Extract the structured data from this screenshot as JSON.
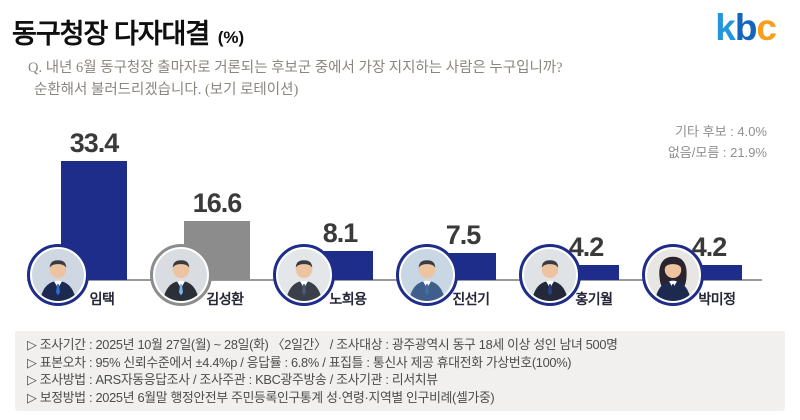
{
  "header": {
    "title": "동구청장 다자대결",
    "unit": "(%)",
    "question_line1": "Q. 내년 6월 동구청장 출마자로 거론되는 후보군 중에서 가장 지지하는 사람은 누구입니까?",
    "question_line2": "순환해서 불러드리겠습니다. (보기 로테이션)"
  },
  "logo": {
    "letters": [
      "k",
      "b",
      "c"
    ],
    "colors": [
      "#2496dc",
      "#1565be",
      "#f79f1a"
    ]
  },
  "side_stats": {
    "line1": "기타 후보 : 4.0%",
    "line2": "없음/모름 : 21.9%"
  },
  "chart_data": {
    "type": "bar",
    "title": "동구청장 다자대결 (%)",
    "categories": [
      "임택",
      "김성환",
      "노희용",
      "진선기",
      "홍기월",
      "박미정"
    ],
    "values": [
      33.4,
      16.6,
      8.1,
      7.5,
      4.2,
      4.2
    ],
    "bar_colors": [
      "#1f2d8a",
      "#8c8c8c",
      "#1f2d8a",
      "#1f2d8a",
      "#1f2d8a",
      "#1f2d8a"
    ],
    "other_candidates_pct": 4.0,
    "none_dontknow_pct": 21.9,
    "unit": "%",
    "ylim": [
      0,
      40
    ],
    "grid": false,
    "legend": "none"
  },
  "candidates": [
    {
      "ring": "#1f2d8a",
      "avatar": {
        "bg": "#cfd8e2",
        "suit": "#1d2a4f",
        "tie": "#2a6fd4",
        "female": false
      }
    },
    {
      "ring": "#8c8c8c",
      "avatar": {
        "bg": "#d9dde2",
        "suit": "#2a2f38",
        "tie": "#7fb6e8",
        "female": false
      }
    },
    {
      "ring": "#1f2d8a",
      "avatar": {
        "bg": "#e3e7ea",
        "suit": "#3a3f4a",
        "tie": "#4a5a78",
        "female": false
      }
    },
    {
      "ring": "#1f2d8a",
      "avatar": {
        "bg": "#c9d6e4",
        "suit": "#3f5e8c",
        "tie": "#3f6ea8",
        "female": false
      }
    },
    {
      "ring": "#1f2d8a",
      "avatar": {
        "bg": "#dfe3e6",
        "suit": "#23283a",
        "tie": "#28408c",
        "female": false
      }
    },
    {
      "ring": "#1f2d8a",
      "avatar": {
        "bg": "#e8e6e2",
        "suit": "#1d2a50",
        "tie": "#1d2a50",
        "female": true
      }
    }
  ],
  "footer": {
    "lines": [
      "▷ 조사기간 : 2025년 10월 27일(월) ~ 28일(화) 〈2일간〉 / 조사대상 : 광주광역시 동구 18세 이상 성인 남녀 500명",
      "▷ 표본오차 : 95% 신뢰수준에서 ±4.4%p / 응답률 : 6.8% / 표집틀 : 통신사 제공 휴대전화 가상번호(100%)",
      "▷ 조사방법 : ARS자동응답조사 / 조사주관 : KBC광주방송 / 조사기관 : 리서치뷰",
      "▷ 보정방법 : 2025년 6월말 행정안전부 주민등록인구통계 성·연령·지역별 인구비례(셀가중)"
    ]
  }
}
